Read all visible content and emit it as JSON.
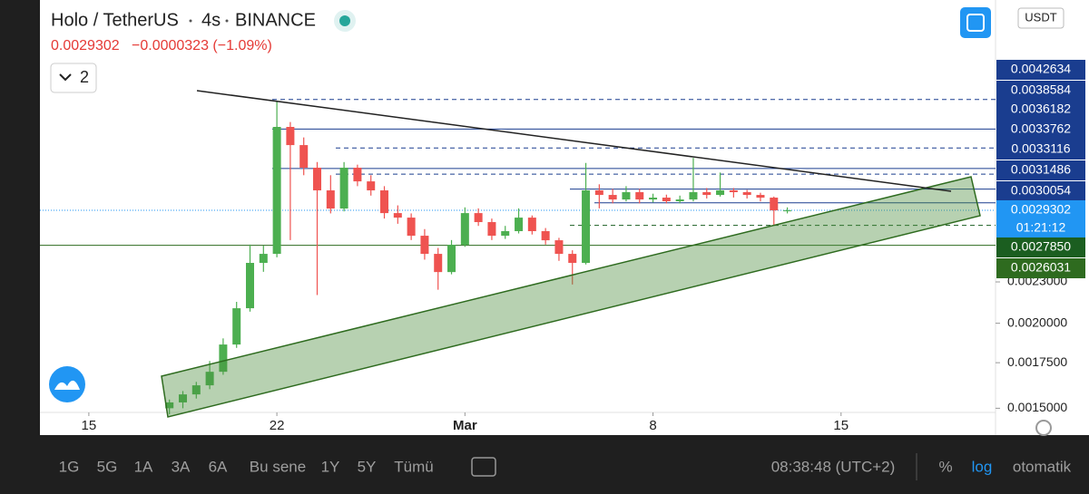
{
  "header": {
    "symbol": "Holo / TetherUS",
    "interval": "4s",
    "exchange": "BINANCE",
    "last_price": "0.0029302",
    "change": "−0.0000323 (−1.09%)",
    "indicator_count": "2",
    "currency": "USDT"
  },
  "chart_data": {
    "type": "candlestick",
    "log_scale": true,
    "x": [
      3,
      3.5,
      4,
      4.5,
      5,
      5.5,
      6,
      6.5,
      7,
      7.5,
      8,
      8.5,
      9,
      9.5,
      10,
      10.5,
      11,
      11.5,
      12,
      12.5,
      13,
      13.5,
      14,
      14.5,
      15,
      15.5,
      16,
      16.5,
      17,
      17.5,
      18,
      18.5,
      19,
      19.5,
      20,
      20.5,
      21,
      21.5,
      22,
      22.5,
      23,
      23.5,
      24,
      24.5,
      25,
      25.5,
      26
    ],
    "open": [
      0.0015,
      0.00153,
      0.001572,
      0.001621,
      0.001697,
      0.001861,
      0.002104,
      0.002453,
      0.002529,
      0.003886,
      0.003654,
      0.003385,
      0.003135,
      0.002948,
      0.003385,
      0.003232,
      0.003135,
      0.002903,
      0.002859,
      0.002689,
      0.002529,
      0.002378,
      0.002608,
      0.002903,
      0.002816,
      0.002689,
      0.002731,
      0.002859,
      0.002731,
      0.002648,
      0.002529,
      0.002453,
      0.003135,
      0.003087,
      0.00304,
      0.003116,
      0.00304,
      0.003059,
      0.003022,
      0.00304,
      0.003116,
      0.003087,
      0.003135,
      0.003116,
      0.003087,
      0.003059,
      0.00293
    ],
    "high": [
      0.001545,
      0.00159,
      0.00164,
      0.00176,
      0.0019,
      0.00215,
      0.00261,
      0.0026,
      0.00424,
      0.00395,
      0.00375,
      0.00345,
      0.0033,
      0.00345,
      0.00342,
      0.0033,
      0.00318,
      0.00298,
      0.0029,
      0.00275,
      0.00258,
      0.00265,
      0.00296,
      0.00295,
      0.00285,
      0.00278,
      0.00295,
      0.00288,
      0.00276,
      0.00267,
      0.00256,
      0.00344,
      0.0032,
      0.00315,
      0.00318,
      0.00315,
      0.0031,
      0.00309,
      0.00308,
      0.0035,
      0.00316,
      0.00333,
      0.00316,
      0.00314,
      0.00311,
      0.00307,
      0.00296
    ],
    "low": [
      0.00147,
      0.0015,
      0.00155,
      0.0016,
      0.00168,
      0.00184,
      0.00208,
      0.00238,
      0.0025,
      0.00265,
      0.0033,
      0.0022,
      0.0029,
      0.00292,
      0.00318,
      0.00308,
      0.00285,
      0.0028,
      0.00265,
      0.00248,
      0.00224,
      0.00236,
      0.00259,
      0.00278,
      0.00265,
      0.00266,
      0.00271,
      0.0027,
      0.00261,
      0.00247,
      0.00228,
      0.00244,
      0.00295,
      0.003,
      0.00302,
      0.003,
      0.00301,
      0.003,
      0.003,
      0.00302,
      0.00305,
      0.00307,
      0.00306,
      0.00305,
      0.00302,
      0.00279,
      0.0029
    ],
    "close": [
      0.00153,
      0.001572,
      0.001621,
      0.001697,
      0.001861,
      0.002104,
      0.002453,
      0.002529,
      0.003886,
      0.003654,
      0.003385,
      0.003135,
      0.002948,
      0.003385,
      0.003232,
      0.003135,
      0.002903,
      0.002859,
      0.002689,
      0.002529,
      0.002378,
      0.002608,
      0.002903,
      0.002816,
      0.002689,
      0.002731,
      0.002859,
      0.002731,
      0.002648,
      0.002529,
      0.002453,
      0.003135,
      0.003087,
      0.00304,
      0.003116,
      0.00304,
      0.003059,
      0.003022,
      0.00304,
      0.003116,
      0.003087,
      0.003135,
      0.003116,
      0.003087,
      0.003059,
      0.00293,
      0.00293
    ],
    "up_color": "#4caf50",
    "down_color": "#ef5350",
    "xlim": [
      -1.82,
      33.75
    ],
    "xticks": [
      {
        "value": 0,
        "label": "15"
      },
      {
        "value": 7,
        "label": "22"
      },
      {
        "value": 14,
        "label": "Mar"
      },
      {
        "value": 21,
        "label": "8"
      },
      {
        "value": 28,
        "label": "15"
      }
    ],
    "ylim": [
      0.001479,
      0.00597
    ],
    "yticks": [
      {
        "value": 0.0015,
        "label": "0.0015000"
      },
      {
        "value": 0.00175,
        "label": "0.0017500"
      },
      {
        "value": 0.002,
        "label": "0.0020000"
      },
      {
        "value": 0.0023,
        "label": "0.0023000"
      }
    ],
    "price_lines": [
      {
        "value": 0.0042634,
        "label": "0.0042634",
        "color": "#1a3d8f",
        "style": "dashed"
      },
      {
        "value": 0.0038584,
        "label": "0.0038584",
        "color": "#1a3d8f",
        "style": "solid"
      },
      {
        "value": 0.0036182,
        "label": "0.0036182",
        "color": "#1a3d8f",
        "style": "dashed"
      },
      {
        "value": 0.0033762,
        "label": "0.0033762",
        "color": "#1a3d8f",
        "style": "solid"
      },
      {
        "value": 0.0033116,
        "label": "0.0033116",
        "color": "#1a3d8f",
        "style": "dashed"
      },
      {
        "value": 0.0031486,
        "label": "0.0031486",
        "color": "#1a3d8f",
        "style": "solid"
      },
      {
        "value": 0.0030054,
        "label": "0.0030054",
        "color": "#1a3d8f",
        "style": "solid"
      },
      {
        "value": 0.0029302,
        "label": "0.0029302",
        "color": "#2196f3",
        "style": "dotted"
      },
      {
        "value": 0.002785,
        "label": "0.0027850",
        "color": "#1b5e20",
        "style": "dashed"
      },
      {
        "value": 0.0026031,
        "label": "0.0026031",
        "color": "#2e6b1f",
        "style": "solid"
      }
    ],
    "countdown": "01:21:12"
  },
  "toolbar": {
    "ranges": [
      "1G",
      "5G",
      "1A",
      "3A",
      "6A",
      "Bu sene",
      "1Y",
      "5Y",
      "Tümü"
    ],
    "clock": "08:38:48 (UTC+2)",
    "percent": "%",
    "log": "log",
    "auto": "otomatik"
  }
}
